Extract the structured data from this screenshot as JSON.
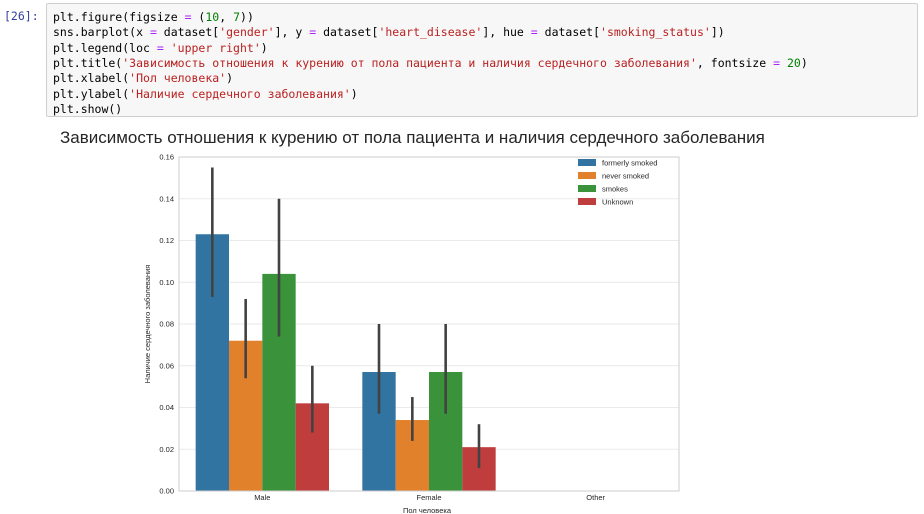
{
  "cell": {
    "prompt": "[26]:",
    "lines": [
      [
        {
          "t": "plt.figure(figsize "
        },
        {
          "t": "=",
          "c": "op"
        },
        {
          "t": " ("
        },
        {
          "t": "10",
          "c": "num"
        },
        {
          "t": ", "
        },
        {
          "t": "7",
          "c": "num"
        },
        {
          "t": "))"
        }
      ],
      [
        {
          "t": "sns.barplot(x "
        },
        {
          "t": "=",
          "c": "op"
        },
        {
          "t": " dataset["
        },
        {
          "t": "'gender'",
          "c": "str"
        },
        {
          "t": "], y "
        },
        {
          "t": "=",
          "c": "op"
        },
        {
          "t": " dataset["
        },
        {
          "t": "'heart_disease'",
          "c": "str"
        },
        {
          "t": "], hue "
        },
        {
          "t": "=",
          "c": "op"
        },
        {
          "t": " dataset["
        },
        {
          "t": "'smoking_status'",
          "c": "str"
        },
        {
          "t": "])"
        }
      ],
      [
        {
          "t": "plt.legend(loc "
        },
        {
          "t": "=",
          "c": "op"
        },
        {
          "t": " "
        },
        {
          "t": "'upper right'",
          "c": "str"
        },
        {
          "t": ")"
        }
      ],
      [
        {
          "t": "plt.title("
        },
        {
          "t": "'Зависимость отношения к курению от пола пациента и наличия сердечного заболевания'",
          "c": "str"
        },
        {
          "t": ", fontsize "
        },
        {
          "t": "=",
          "c": "op"
        },
        {
          "t": " "
        },
        {
          "t": "20",
          "c": "num"
        },
        {
          "t": ")"
        }
      ],
      [
        {
          "t": "plt.xlabel("
        },
        {
          "t": "'Пол человека'",
          "c": "str"
        },
        {
          "t": ")"
        }
      ],
      [
        {
          "t": "plt.ylabel("
        },
        {
          "t": "'Наличие сердечного заболевания'",
          "c": "str"
        },
        {
          "t": ")"
        }
      ],
      [
        {
          "t": "plt.show()"
        }
      ]
    ]
  },
  "colors": {
    "prompt": "#303f9f",
    "num": "#008000",
    "str": "#ba2121",
    "op": "#aa22ff",
    "grid": "#eaeaea",
    "errbar": "#424242"
  },
  "chart_data": {
    "type": "bar",
    "title": "Зависимость отношения к курению от пола пациента и наличия сердечного заболевания",
    "xlabel": "Пол человека",
    "ylabel": "Наличие сердечного заболевания",
    "categories": [
      "Male",
      "Female",
      "Other"
    ],
    "ylim": [
      0,
      0.16
    ],
    "yticks": [
      0.0,
      0.02,
      0.04,
      0.06,
      0.08,
      0.1,
      0.12,
      0.14,
      0.16
    ],
    "ytick_labels": [
      "0.00",
      "0.02",
      "0.04",
      "0.06",
      "0.08",
      "0.10",
      "0.12",
      "0.14",
      "0.16"
    ],
    "grid": true,
    "legend_position": "top-right",
    "series": [
      {
        "name": "formerly smoked",
        "color": "#3274a1",
        "values": [
          0.123,
          0.057,
          null
        ],
        "ci_low": [
          0.093,
          0.037,
          null
        ],
        "ci_high": [
          0.155,
          0.08,
          null
        ]
      },
      {
        "name": "never smoked",
        "color": "#e1812c",
        "values": [
          0.072,
          0.034,
          null
        ],
        "ci_low": [
          0.054,
          0.024,
          null
        ],
        "ci_high": [
          0.092,
          0.045,
          null
        ]
      },
      {
        "name": "smokes",
        "color": "#3a923a",
        "values": [
          0.104,
          0.057,
          null
        ],
        "ci_low": [
          0.074,
          0.037,
          null
        ],
        "ci_high": [
          0.14,
          0.08,
          null
        ]
      },
      {
        "name": "Unknown",
        "color": "#c03d3e",
        "values": [
          0.042,
          0.021,
          null
        ],
        "ci_low": [
          0.028,
          0.011,
          null
        ],
        "ci_high": [
          0.06,
          0.032,
          null
        ]
      }
    ]
  }
}
